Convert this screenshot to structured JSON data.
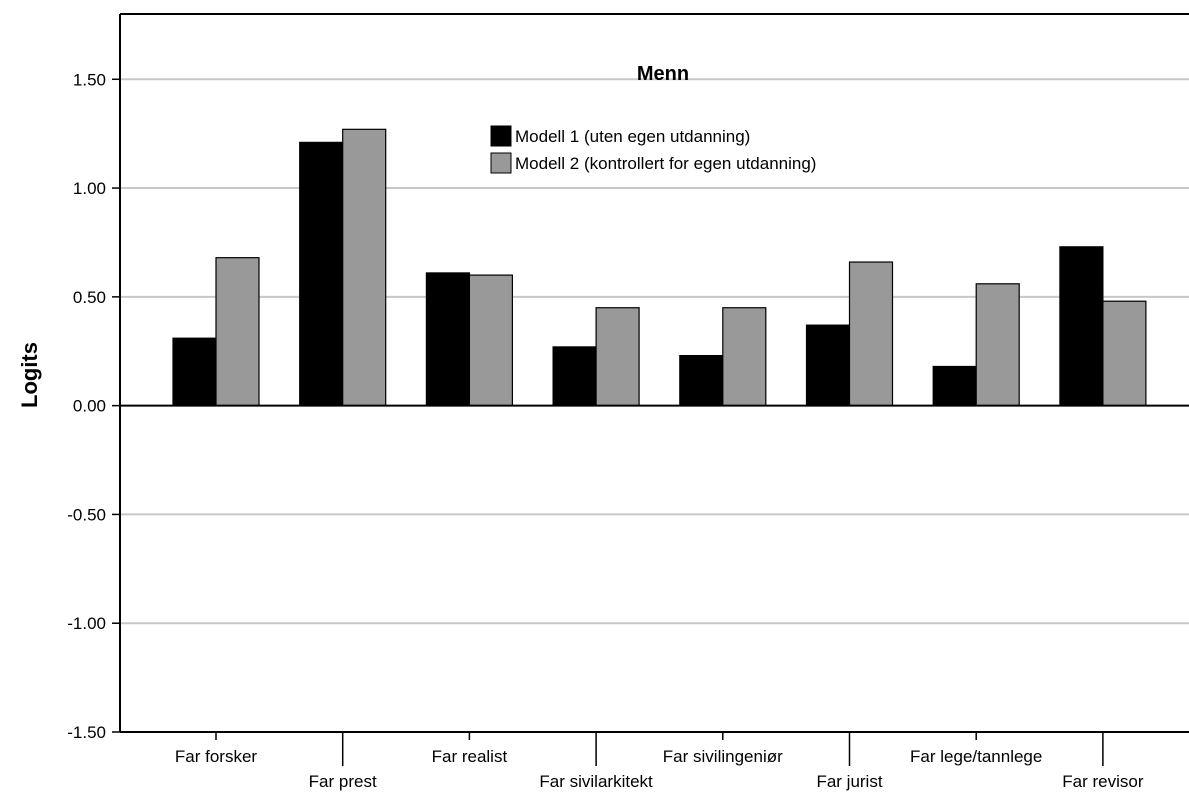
{
  "chart_data": {
    "type": "bar",
    "title": "Menn",
    "xlabel": "",
    "ylabel": "Logits",
    "ylim": [
      -1.5,
      1.8
    ],
    "yticks": [
      1.5,
      1.0,
      0.5,
      0.0,
      -0.5,
      -1.0,
      -1.5
    ],
    "ytick_labels": [
      "1.50",
      "1.00",
      "0.50",
      "0.00",
      "-0.50",
      "-1.00",
      "-1.50"
    ],
    "grid": true,
    "legend_position": "top-center",
    "categories": [
      "Far forsker",
      "Far prest",
      "Far realist",
      "Far sivilarkitekt",
      "Far sivilingeniør",
      "Far jurist",
      "Far lege/tannlege",
      "Far revisor"
    ],
    "series": [
      {
        "name": "Modell 1 (uten egen utdanning)",
        "color": "#000000",
        "values": [
          0.31,
          1.21,
          0.61,
          0.27,
          0.23,
          0.37,
          0.18,
          0.73
        ]
      },
      {
        "name": "Modell 2 (kontrollert for egen utdanning)",
        "color": "#999999",
        "values": [
          0.68,
          1.27,
          0.6,
          0.45,
          0.45,
          0.66,
          0.56,
          0.48
        ]
      }
    ]
  }
}
